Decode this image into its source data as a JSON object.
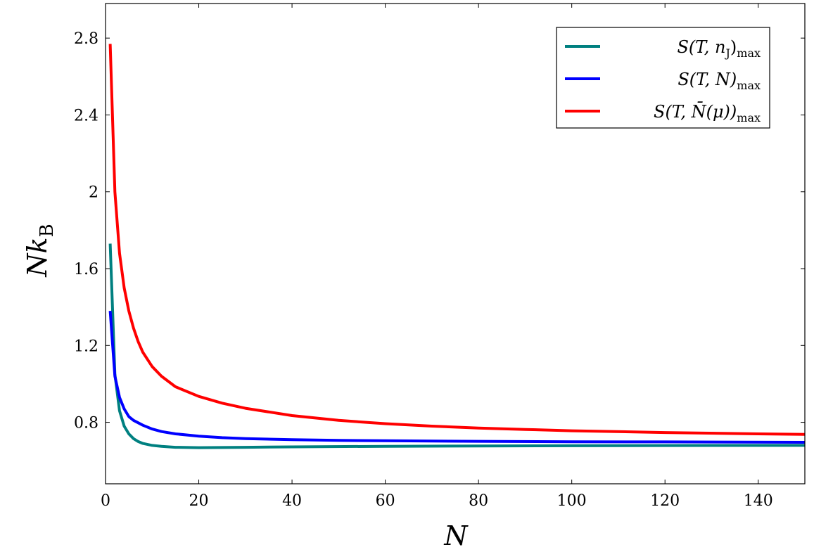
{
  "chart_data": {
    "type": "line",
    "title": "",
    "xlabel": "N",
    "ylabel": "Nk",
    "ylabel_sub": "B",
    "xlim": [
      0,
      150
    ],
    "ylim": [
      0.48,
      2.98
    ],
    "x_ticks": [
      0,
      20,
      40,
      60,
      80,
      100,
      120,
      140
    ],
    "y_ticks": [
      0.8,
      1.2,
      1.6,
      2.0,
      2.4,
      2.8
    ],
    "x_tick_labels": [
      "0",
      "20",
      "40",
      "60",
      "80",
      "100",
      "120",
      "140"
    ],
    "y_tick_labels": [
      "0.8",
      "1.2",
      "1.6",
      "2",
      "2.4",
      "2.8"
    ],
    "grid": false,
    "legend_position": "top-right",
    "series": [
      {
        "name": "S(T, n_J)_max",
        "legend_main": "S(T, n",
        "legend_sub1": "J",
        "legend_tail": ")",
        "legend_sub2": "max",
        "color": "#008080",
        "points": [
          [
            1,
            1.73
          ],
          [
            2,
            1.05
          ],
          [
            3,
            0.86
          ],
          [
            4,
            0.78
          ],
          [
            5,
            0.74
          ],
          [
            6,
            0.715
          ],
          [
            7,
            0.7
          ],
          [
            8,
            0.69
          ],
          [
            10,
            0.68
          ],
          [
            12,
            0.675
          ],
          [
            15,
            0.67
          ],
          [
            20,
            0.668
          ],
          [
            30,
            0.67
          ],
          [
            40,
            0.672
          ],
          [
            60,
            0.675
          ],
          [
            80,
            0.677
          ],
          [
            100,
            0.678
          ],
          [
            120,
            0.679
          ],
          [
            150,
            0.68
          ]
        ]
      },
      {
        "name": "S(T, N)_max",
        "legend_main": "S(T, N)",
        "legend_sub1": "",
        "legend_tail": "",
        "legend_sub2": "max",
        "color": "#0000ff",
        "points": [
          [
            1,
            1.38
          ],
          [
            2,
            1.04
          ],
          [
            3,
            0.93
          ],
          [
            4,
            0.87
          ],
          [
            5,
            0.83
          ],
          [
            6,
            0.81
          ],
          [
            8,
            0.785
          ],
          [
            10,
            0.765
          ],
          [
            12,
            0.752
          ],
          [
            15,
            0.74
          ],
          [
            20,
            0.728
          ],
          [
            25,
            0.72
          ],
          [
            30,
            0.715
          ],
          [
            40,
            0.71
          ],
          [
            50,
            0.706
          ],
          [
            60,
            0.704
          ],
          [
            80,
            0.701
          ],
          [
            100,
            0.699
          ],
          [
            120,
            0.698
          ],
          [
            150,
            0.696
          ]
        ]
      },
      {
        "name": "S(T, N̄(μ))_max",
        "legend_main": "S(T, N̄(μ))",
        "legend_sub1": "",
        "legend_tail": "",
        "legend_sub2": "max",
        "color": "#ff0000",
        "points": [
          [
            1,
            2.77
          ],
          [
            2,
            2.0
          ],
          [
            3,
            1.68
          ],
          [
            4,
            1.5
          ],
          [
            5,
            1.38
          ],
          [
            6,
            1.29
          ],
          [
            7,
            1.22
          ],
          [
            8,
            1.165
          ],
          [
            10,
            1.09
          ],
          [
            12,
            1.04
          ],
          [
            15,
            0.985
          ],
          [
            20,
            0.935
          ],
          [
            25,
            0.9
          ],
          [
            30,
            0.873
          ],
          [
            40,
            0.835
          ],
          [
            50,
            0.81
          ],
          [
            60,
            0.793
          ],
          [
            70,
            0.78
          ],
          [
            80,
            0.77
          ],
          [
            90,
            0.763
          ],
          [
            100,
            0.756
          ],
          [
            120,
            0.747
          ],
          [
            140,
            0.74
          ],
          [
            150,
            0.737
          ]
        ]
      }
    ]
  }
}
